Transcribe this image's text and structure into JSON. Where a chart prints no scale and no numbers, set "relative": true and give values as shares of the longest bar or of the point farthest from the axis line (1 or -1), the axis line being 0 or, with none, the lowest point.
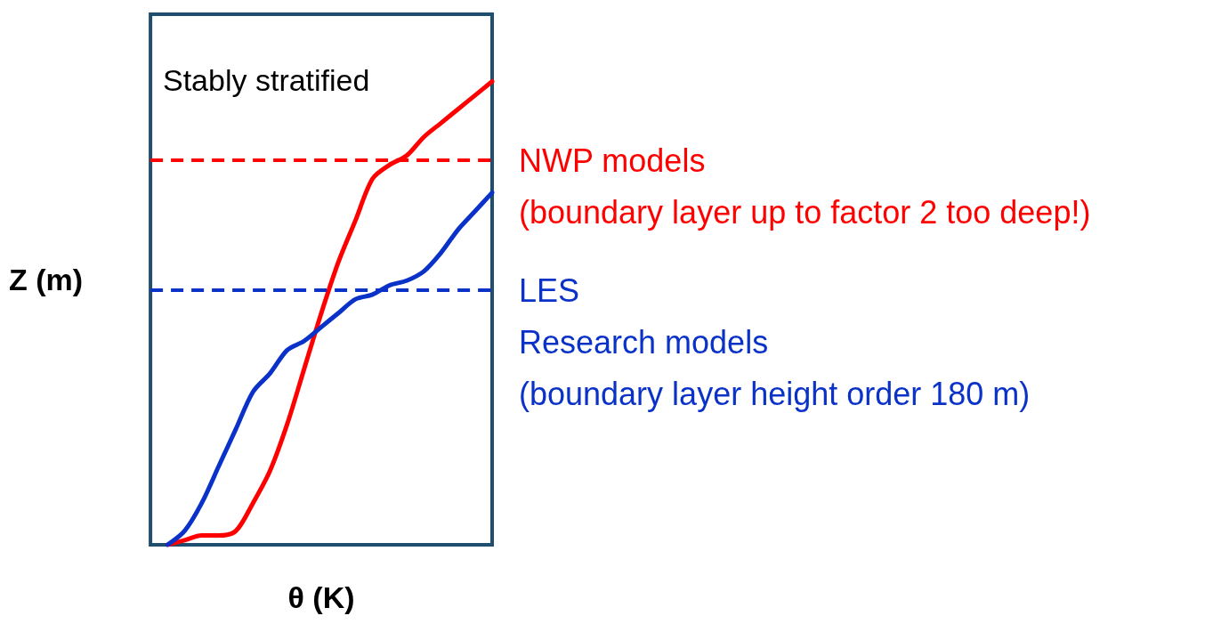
{
  "chart_data": {
    "type": "line",
    "relative": true,
    "xlabel": "θ (K)",
    "ylabel": "Z (m)",
    "annotations": [
      "Stably stratified"
    ],
    "grid": false,
    "marker": "none",
    "line_style": "solid",
    "categories": [
      null,
      null,
      null,
      null,
      null,
      null,
      null,
      null,
      null,
      null,
      null,
      null,
      null,
      null,
      null,
      null,
      null,
      null,
      null,
      null,
      null
    ],
    "series": [
      {
        "color": "#ff0000",
        "values": [
          null,
          0.0,
          0.01,
          0.02,
          0.02,
          0.03,
          0.09,
          0.16,
          0.26,
          0.38,
          0.5,
          0.61,
          0.7,
          0.79,
          0.82,
          0.84,
          0.88,
          0.91,
          0.94,
          0.97,
          1
        ]
      },
      {
        "color": "#0a32c8",
        "values": [
          null,
          0.0,
          0.03,
          0.09,
          0.17,
          0.25,
          0.33,
          0.37,
          0.42,
          0.44,
          0.47,
          0.5,
          0.53,
          0.54,
          0.56,
          0.57,
          0.59,
          0.63,
          0.68,
          0.72,
          0.76
        ]
      }
    ],
    "ref_lines": [
      {
        "axis": "y",
        "value": 0.83,
        "label": "NWP models\n(boundary layer up to factor 2 too deep!)",
        "color": "#ff0000",
        "line_style": "dashed"
      },
      {
        "axis": "y",
        "value": 0.55,
        "label": "LES\nResearch models\n(boundary layer height order 180 m)",
        "color": "#0a32c8",
        "line_style": "dashed"
      }
    ]
  }
}
